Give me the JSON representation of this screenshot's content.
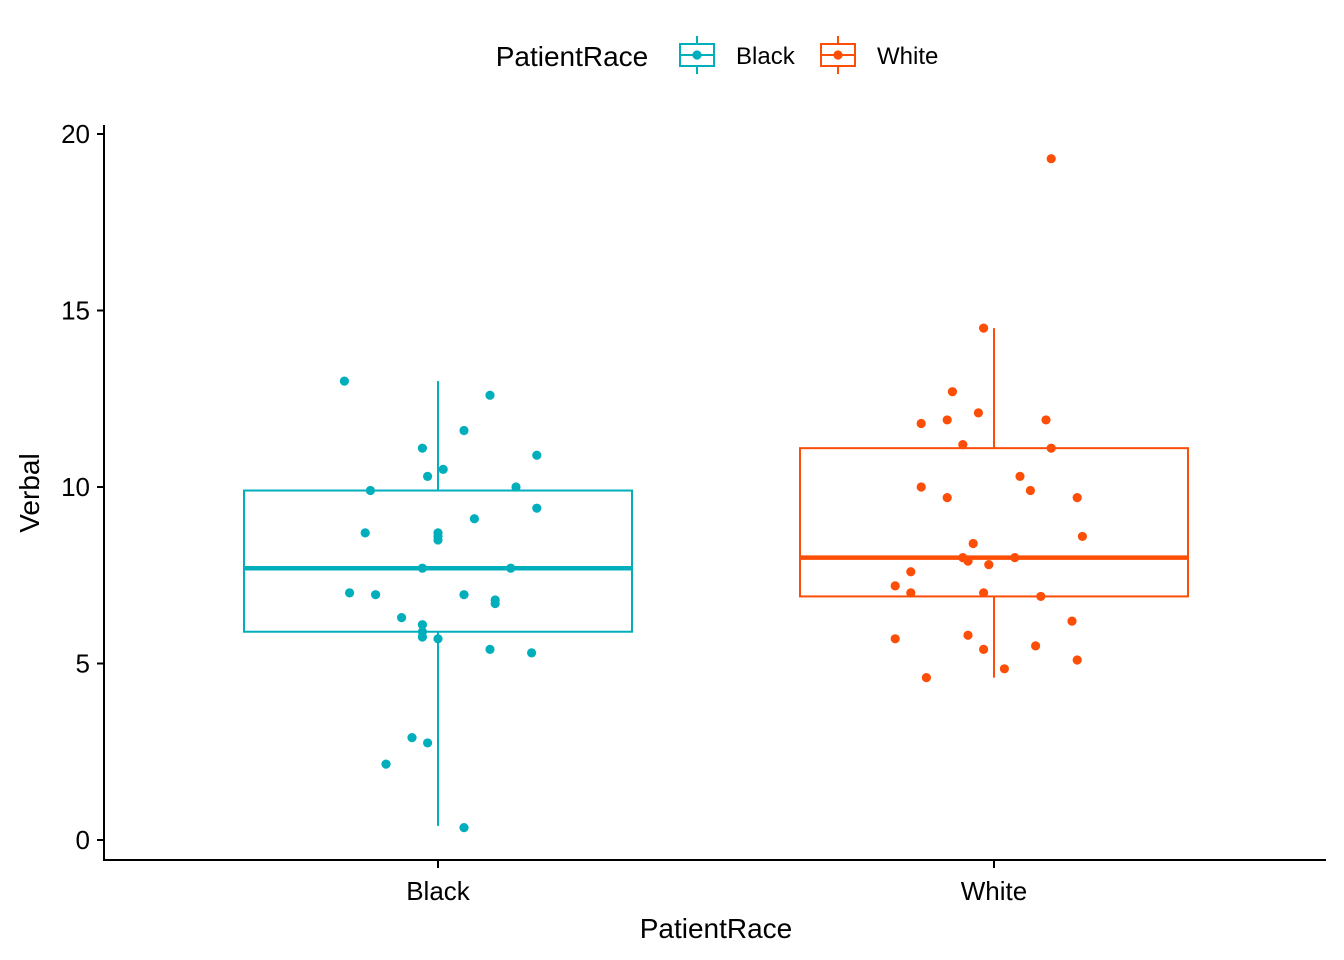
{
  "chart_data": {
    "type": "boxplot",
    "xlabel": "PatientRace",
    "ylabel": "Verbal",
    "categories": [
      "Black",
      "White"
    ],
    "ylim": [
      0,
      20
    ],
    "yticks": [
      0,
      5,
      10,
      15,
      20
    ],
    "legend": {
      "title": "PatientRace",
      "position": "top",
      "entries": [
        "Black",
        "White"
      ]
    },
    "colors": {
      "Black": "#00AFBB",
      "White": "#FC4E07"
    },
    "grid": false,
    "series": [
      {
        "name": "Black",
        "box": {
          "whisker_low": 0.4,
          "q1": 5.9,
          "median": 7.7,
          "q3": 9.9,
          "whisker_high": 13.0
        },
        "points": [
          [
            -0.18,
            13.0
          ],
          [
            0.1,
            12.6
          ],
          [
            0.05,
            11.6
          ],
          [
            -0.03,
            11.1
          ],
          [
            0.01,
            10.5
          ],
          [
            -0.02,
            10.3
          ],
          [
            0.19,
            10.9
          ],
          [
            0.15,
            10.0
          ],
          [
            -0.13,
            9.9
          ],
          [
            0.19,
            9.4
          ],
          [
            0.07,
            9.1
          ],
          [
            -0.14,
            8.7
          ],
          [
            0.0,
            8.7
          ],
          [
            0.0,
            8.6
          ],
          [
            0.0,
            8.5
          ],
          [
            -0.03,
            7.7
          ],
          [
            0.14,
            7.7
          ],
          [
            -0.17,
            7.0
          ],
          [
            -0.12,
            6.95
          ],
          [
            0.05,
            6.95
          ],
          [
            0.11,
            6.8
          ],
          [
            0.11,
            6.7
          ],
          [
            -0.07,
            6.3
          ],
          [
            -0.03,
            6.1
          ],
          [
            -0.03,
            5.9
          ],
          [
            -0.03,
            5.75
          ],
          [
            0.0,
            5.7
          ],
          [
            0.1,
            5.4
          ],
          [
            0.18,
            5.3
          ],
          [
            -0.05,
            2.9
          ],
          [
            -0.02,
            2.75
          ],
          [
            -0.1,
            2.15
          ],
          [
            0.05,
            0.35
          ]
        ]
      },
      {
        "name": "White",
        "box": {
          "whisker_low": 4.6,
          "q1": 6.9,
          "median": 8.0,
          "q3": 11.1,
          "whisker_high": 14.5
        },
        "points": [
          [
            0.11,
            19.3
          ],
          [
            -0.02,
            14.5
          ],
          [
            -0.08,
            12.7
          ],
          [
            -0.03,
            12.1
          ],
          [
            -0.14,
            11.8
          ],
          [
            -0.09,
            11.9
          ],
          [
            0.1,
            11.9
          ],
          [
            -0.06,
            11.2
          ],
          [
            0.11,
            11.1
          ],
          [
            -0.14,
            10.0
          ],
          [
            0.05,
            10.3
          ],
          [
            0.07,
            9.9
          ],
          [
            -0.09,
            9.7
          ],
          [
            0.16,
            9.7
          ],
          [
            0.17,
            8.6
          ],
          [
            -0.04,
            8.4
          ],
          [
            -0.06,
            8.0
          ],
          [
            -0.05,
            7.9
          ],
          [
            -0.01,
            7.8
          ],
          [
            0.04,
            8.0
          ],
          [
            -0.16,
            7.6
          ],
          [
            -0.19,
            7.2
          ],
          [
            -0.16,
            7.0
          ],
          [
            -0.02,
            7.0
          ],
          [
            0.09,
            6.9
          ],
          [
            0.15,
            6.2
          ],
          [
            -0.19,
            5.7
          ],
          [
            -0.05,
            5.8
          ],
          [
            -0.02,
            5.4
          ],
          [
            0.08,
            5.5
          ],
          [
            0.16,
            5.1
          ],
          [
            0.02,
            4.85
          ],
          [
            -0.13,
            4.6
          ]
        ]
      }
    ]
  }
}
